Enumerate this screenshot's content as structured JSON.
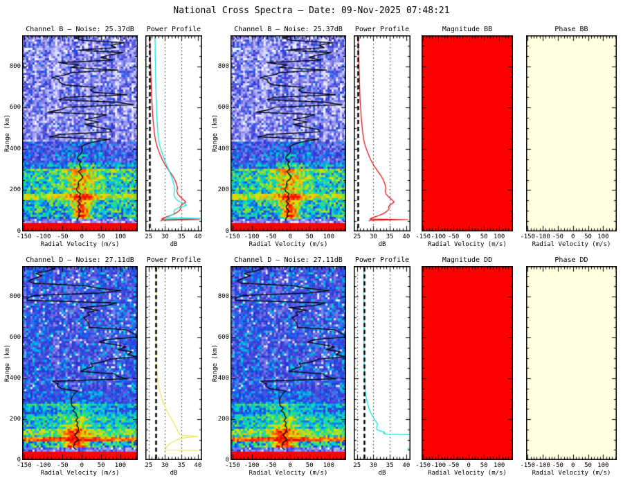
{
  "header": {
    "title": "National Cross Spectra — Date: 09-Nov-2025 07:48:21"
  },
  "panel_titles": {
    "r0_spec": "Channel B — Noise: 25.37dB",
    "r0_profile": "Power Profile",
    "r0_mag": "Magnitude BB",
    "r0_phase": "Phase BB",
    "r1_spec": "Channel D — Noise: 27.11dB",
    "r1_profile": "Power Profile",
    "r1_mag": "Magnitude DD",
    "r1_phase": "Phase DD"
  },
  "axes_labels": {
    "velocity": "Radial Velocity (m/s)",
    "db": "dB",
    "range": "Range (km)"
  },
  "colors": {
    "background": "#ffffff",
    "frame": "#000000",
    "text": "#000000",
    "magnitude_fill": "#fd0000",
    "phase_fill": "#fffee0",
    "noise_line": "#000000",
    "trace": "#000000",
    "series": {
      "red": "#dd0000",
      "cyan": "#00dfdf",
      "yellow": "#f0e44c"
    }
  },
  "chart_data": {
    "type": "heatmap",
    "description": "2x6 grid: Doppler spectrogram + power profile (x2) + magnitude + phase, for channels B and D",
    "velocity_axis": {
      "label": "Radial Velocity (m/s)",
      "range": [
        -155,
        145
      ],
      "major_ticks": [
        -150,
        -100,
        -50,
        0,
        50,
        100
      ],
      "minor_step": 10
    },
    "range_axis": {
      "label": "Range (km)",
      "range": [
        0,
        950
      ],
      "major_ticks": [
        0,
        200,
        400,
        600,
        800
      ],
      "minor_step": 50
    },
    "db_axis": {
      "label": "dB",
      "range": [
        24,
        41.3
      ],
      "major_ticks": [
        25,
        30,
        35,
        40
      ],
      "minor_step": 1,
      "dotted_gridlines": [
        25,
        30,
        35
      ]
    },
    "heatmap_palette": [
      [
        0.0,
        "#ffffff"
      ],
      [
        0.1,
        "#ccccff"
      ],
      [
        0.2,
        "#9494ef"
      ],
      [
        0.3,
        "#5b5bdf"
      ],
      [
        0.38,
        "#2e2ed0"
      ],
      [
        0.45,
        "#1560f0"
      ],
      [
        0.5,
        "#00a2f0"
      ],
      [
        0.56,
        "#00d8d0"
      ],
      [
        0.62,
        "#30dc70"
      ],
      [
        0.68,
        "#8fe32e"
      ],
      [
        0.75,
        "#e0e300"
      ],
      [
        0.82,
        "#ffb400"
      ],
      [
        0.9,
        "#ff5a00"
      ],
      [
        1.0,
        "#fb0000"
      ]
    ],
    "channels": {
      "B": {
        "noise_db": 25.37,
        "seed": 11,
        "trace": {
          "seed": 5,
          "settle_range": 440,
          "center": -6
        },
        "bands": [
          {
            "lo": 430,
            "hi": 950,
            "mode": "noise",
            "base": 0.06,
            "jit": 0.3
          },
          {
            "lo": 330,
            "hi": 430,
            "base": 0.34,
            "jit": 0.16,
            "bump": 0.1,
            "bw": 50
          },
          {
            "lo": 300,
            "hi": 330,
            "base": 0.46,
            "jit": 0.14,
            "bump": 0.15,
            "bw": 45
          },
          {
            "lo": 180,
            "hi": 300,
            "base": 0.58,
            "jit": 0.14,
            "bump": 0.22,
            "bw": 40
          },
          {
            "lo": 150,
            "hi": 180,
            "base": 0.72,
            "jit": 0.12,
            "bump": 0.24,
            "bw": 40
          },
          {
            "lo": 120,
            "hi": 150,
            "base": 0.6,
            "jit": 0.15,
            "bump": 0.3,
            "bw": 30
          },
          {
            "lo": 60,
            "hi": 120,
            "base": 0.52,
            "jit": 0.16,
            "bump": 0.42,
            "bw": 22
          },
          {
            "lo": 45,
            "hi": 60,
            "mode": "noise",
            "base": 0.1,
            "jit": 0.22
          },
          {
            "lo": 0,
            "hi": 45,
            "mode": "solid"
          }
        ],
        "profiles": {
          "red": [
            [
              950,
              25.3
            ],
            [
              900,
              25.4
            ],
            [
              850,
              25.5
            ],
            [
              800,
              25.6
            ],
            [
              750,
              25.7
            ],
            [
              700,
              25.8
            ],
            [
              650,
              25.9
            ],
            [
              600,
              26.1
            ],
            [
              550,
              26.3
            ],
            [
              500,
              26.6
            ],
            [
              470,
              26.8
            ],
            [
              440,
              27.1
            ],
            [
              410,
              27.6
            ],
            [
              380,
              28.3
            ],
            [
              350,
              29.1
            ],
            [
              320,
              30.1
            ],
            [
              290,
              31.4
            ],
            [
              270,
              32.3
            ],
            [
              250,
              33.0
            ],
            [
              230,
              33.5
            ],
            [
              210,
              33.8
            ],
            [
              195,
              33.6
            ],
            [
              180,
              33.9
            ],
            [
              168,
              34.6
            ],
            [
              158,
              35.3
            ],
            [
              148,
              36.0
            ],
            [
              142,
              36.3
            ],
            [
              134,
              35.6
            ],
            [
              126,
              34.9
            ],
            [
              118,
              34.6
            ],
            [
              110,
              34.8
            ],
            [
              102,
              34.4
            ],
            [
              94,
              33.8
            ],
            [
              86,
              33.0
            ],
            [
              78,
              31.8
            ],
            [
              70,
              30.4
            ],
            [
              64,
              29.4
            ],
            [
              60,
              29.0
            ],
            [
              57,
              40.5
            ],
            [
              54,
              29.0
            ],
            [
              50,
              28.6
            ]
          ],
          "cyan": [
            [
              950,
              26.9
            ],
            [
              900,
              27.0
            ],
            [
              850,
              27.0
            ],
            [
              800,
              27.1
            ],
            [
              750,
              27.1
            ],
            [
              700,
              27.2
            ],
            [
              650,
              27.3
            ],
            [
              600,
              27.4
            ],
            [
              550,
              27.5
            ],
            [
              500,
              27.7
            ],
            [
              460,
              27.9
            ],
            [
              430,
              28.2
            ],
            [
              400,
              28.7
            ],
            [
              370,
              29.3
            ],
            [
              340,
              30.0
            ],
            [
              310,
              30.8
            ],
            [
              285,
              31.5
            ],
            [
              260,
              32.1
            ],
            [
              240,
              32.5
            ],
            [
              220,
              32.8
            ],
            [
              200,
              32.9
            ],
            [
              185,
              32.7
            ],
            [
              172,
              32.8
            ],
            [
              160,
              33.2
            ],
            [
              150,
              33.8
            ],
            [
              141,
              34.9
            ],
            [
              133,
              36.2
            ],
            [
              127,
              36.6
            ],
            [
              121,
              35.6
            ],
            [
              114,
              34.0
            ],
            [
              106,
              33.0
            ],
            [
              98,
              32.7
            ],
            [
              90,
              32.9
            ],
            [
              82,
              32.4
            ],
            [
              74,
              31.4
            ],
            [
              68,
              30.4
            ],
            [
              63,
              40.9
            ],
            [
              59,
              30.0
            ],
            [
              53,
              29.4
            ]
          ]
        }
      },
      "D": {
        "noise_db": 27.11,
        "seed": 77,
        "trace": {
          "seed": 9,
          "settle_range": 330,
          "center": -18
        },
        "bands": [
          {
            "lo": 340,
            "hi": 950,
            "mode": "noise2",
            "base": 0.26,
            "jit": 0.2
          },
          {
            "lo": 280,
            "hi": 340,
            "base": 0.4,
            "jit": 0.13,
            "bump": 0.06,
            "bw": 60,
            "bc": -10
          },
          {
            "lo": 200,
            "hi": 280,
            "base": 0.5,
            "jit": 0.12,
            "bump": 0.1,
            "bw": 50,
            "bc": -10
          },
          {
            "lo": 150,
            "hi": 200,
            "base": 0.57,
            "jit": 0.12,
            "bump": 0.15,
            "bw": 40,
            "bc": -12
          },
          {
            "lo": 115,
            "hi": 150,
            "base": 0.62,
            "jit": 0.13,
            "bump": 0.3,
            "bw": 35,
            "bc": -15
          },
          {
            "lo": 95,
            "hi": 115,
            "base": 0.88,
            "jit": 0.1,
            "bump": 0.1,
            "bw": 60,
            "bc": -15
          },
          {
            "lo": 65,
            "hi": 95,
            "base": 0.56,
            "jit": 0.16,
            "bump": 0.45,
            "bw": 30,
            "bc": -18
          },
          {
            "lo": 45,
            "hi": 65,
            "mode": "noise",
            "base": 0.12,
            "jit": 0.2
          },
          {
            "lo": 0,
            "hi": 45,
            "mode": "solid"
          }
        ],
        "profiles": {
          "yellow": [
            [
              950,
              27.3
            ],
            [
              900,
              27.2
            ],
            [
              850,
              27.3
            ],
            [
              800,
              27.2
            ],
            [
              750,
              27.3
            ],
            [
              700,
              27.2
            ],
            [
              650,
              27.3
            ],
            [
              600,
              27.2
            ],
            [
              550,
              27.3
            ],
            [
              500,
              27.3
            ],
            [
              460,
              27.4
            ],
            [
              430,
              27.5
            ],
            [
              400,
              27.7
            ],
            [
              370,
              28.0
            ],
            [
              340,
              28.4
            ],
            [
              310,
              28.9
            ],
            [
              280,
              29.5
            ],
            [
              250,
              30.3
            ],
            [
              225,
              31.1
            ],
            [
              205,
              31.8
            ],
            [
              188,
              32.4
            ],
            [
              172,
              33.0
            ],
            [
              158,
              33.4
            ],
            [
              146,
              33.8
            ],
            [
              136,
              34.1
            ],
            [
              128,
              34.4
            ],
            [
              121,
              35.1
            ],
            [
              116,
              40.0
            ],
            [
              110,
              36.2
            ],
            [
              103,
              34.3
            ],
            [
              96,
              33.2
            ],
            [
              88,
              32.2
            ],
            [
              80,
              31.4
            ],
            [
              72,
              30.9
            ],
            [
              64,
              30.5
            ],
            [
              56,
              30.2
            ],
            [
              50,
              30.0
            ],
            [
              46,
              40.0
            ]
          ],
          "cyan": [
            [
              950,
              27.1
            ],
            [
              880,
              27.1
            ],
            [
              810,
              27.1
            ],
            [
              740,
              27.1
            ],
            [
              670,
              27.2
            ],
            [
              600,
              27.1
            ],
            [
              530,
              27.2
            ],
            [
              470,
              27.2
            ],
            [
              420,
              27.3
            ],
            [
              380,
              27.4
            ],
            [
              345,
              27.5
            ],
            [
              315,
              27.7
            ],
            [
              285,
              28.1
            ],
            [
              255,
              28.6
            ],
            [
              228,
              29.3
            ],
            [
              205,
              30.1
            ],
            [
              188,
              30.8
            ],
            [
              175,
              31.3
            ],
            [
              166,
              31.1
            ],
            [
              157,
              30.9
            ],
            [
              149,
              31.1
            ],
            [
              142,
              32.2
            ],
            [
              136,
              33.4
            ],
            [
              131,
              33.1
            ],
            [
              127,
              33.9
            ],
            [
              124,
              41.5
            ],
            [
              60,
              41.5
            ],
            [
              56,
              40.6
            ],
            [
              50,
              40.7
            ],
            [
              47,
              41.5
            ]
          ]
        }
      }
    },
    "grid": [
      {
        "row": 0,
        "col": 0,
        "type": "spectrogram",
        "channel": "B"
      },
      {
        "row": 0,
        "col": 1,
        "type": "profile",
        "channel": "B",
        "series": [
          "red",
          "cyan"
        ]
      },
      {
        "row": 0,
        "col": 2,
        "type": "spectrogram",
        "channel": "B"
      },
      {
        "row": 0,
        "col": 3,
        "type": "profile",
        "channel": "B",
        "series": [
          "red"
        ]
      },
      {
        "row": 0,
        "col": 4,
        "type": "flat",
        "fill": "magnitude_fill"
      },
      {
        "row": 0,
        "col": 5,
        "type": "flat",
        "fill": "phase_fill"
      },
      {
        "row": 1,
        "col": 0,
        "type": "spectrogram",
        "channel": "D"
      },
      {
        "row": 1,
        "col": 1,
        "type": "profile",
        "channel": "D",
        "series": [
          "yellow"
        ]
      },
      {
        "row": 1,
        "col": 2,
        "type": "spectrogram",
        "channel": "D"
      },
      {
        "row": 1,
        "col": 3,
        "type": "profile",
        "channel": "D",
        "series": [
          "cyan"
        ]
      },
      {
        "row": 1,
        "col": 4,
        "type": "flat",
        "fill": "magnitude_fill"
      },
      {
        "row": 1,
        "col": 5,
        "type": "flat",
        "fill": "phase_fill"
      }
    ]
  }
}
